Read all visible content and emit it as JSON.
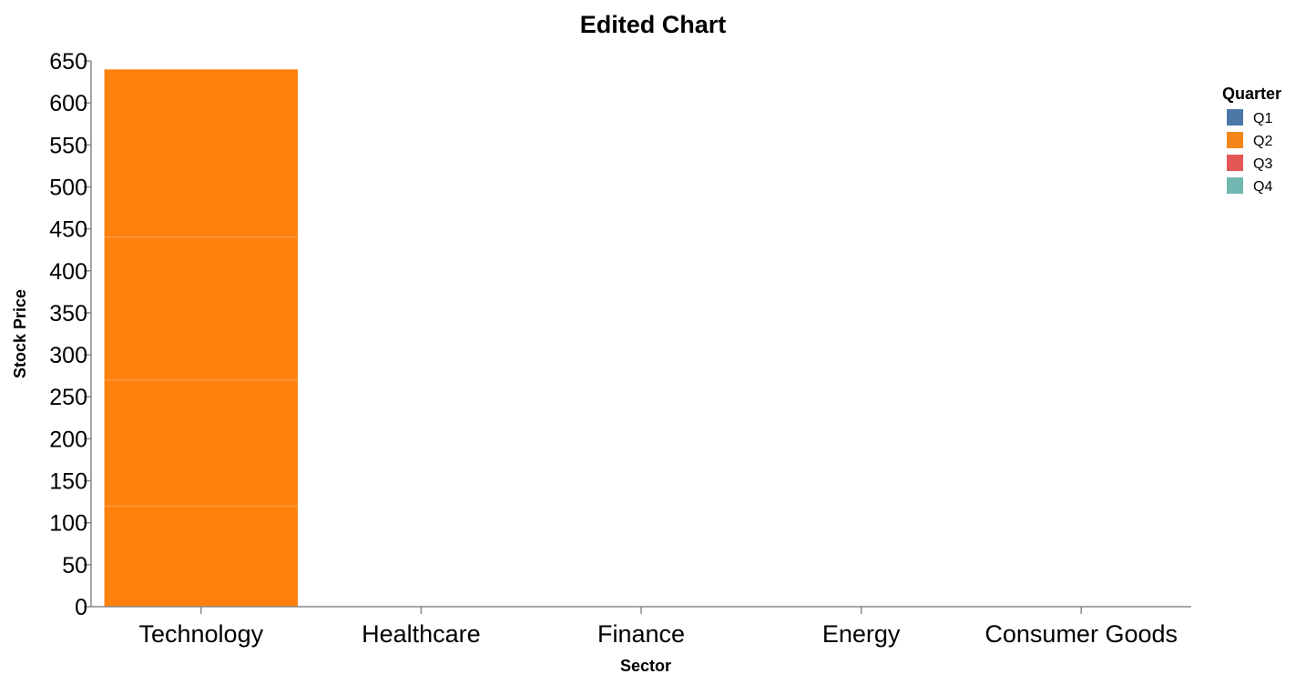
{
  "chart_data": {
    "type": "bar",
    "stacked": true,
    "title": "Edited Chart",
    "xlabel": "Sector",
    "ylabel": "Stock Price",
    "ylim": [
      0,
      650
    ],
    "y_ticks": [
      0,
      50,
      100,
      150,
      200,
      250,
      300,
      350,
      400,
      450,
      500,
      550,
      600,
      650
    ],
    "grid": false,
    "legend": {
      "title": "Quarter",
      "placement": "top-right",
      "entries": [
        {
          "label": "Q1",
          "color": "#4c78a8"
        },
        {
          "label": "Q2",
          "color": "#f58518"
        },
        {
          "label": "Q3",
          "color": "#e45756"
        },
        {
          "label": "Q4",
          "color": "#72b7b2"
        }
      ]
    },
    "categories": [
      "Technology",
      "Healthcare",
      "Finance",
      "Energy",
      "Consumer Goods"
    ],
    "series": [
      {
        "name": "Q2",
        "color": "#fe810e",
        "values": [
          120,
          0,
          0,
          0,
          0
        ]
      },
      {
        "name": "Q2",
        "color": "#fe810e",
        "values": [
          150,
          0,
          0,
          0,
          0
        ]
      },
      {
        "name": "Q2",
        "color": "#fe810e",
        "values": [
          170,
          0,
          0,
          0,
          0
        ]
      },
      {
        "name": "Q2",
        "color": "#fe810e",
        "values": [
          200,
          0,
          0,
          0,
          0
        ]
      }
    ]
  }
}
